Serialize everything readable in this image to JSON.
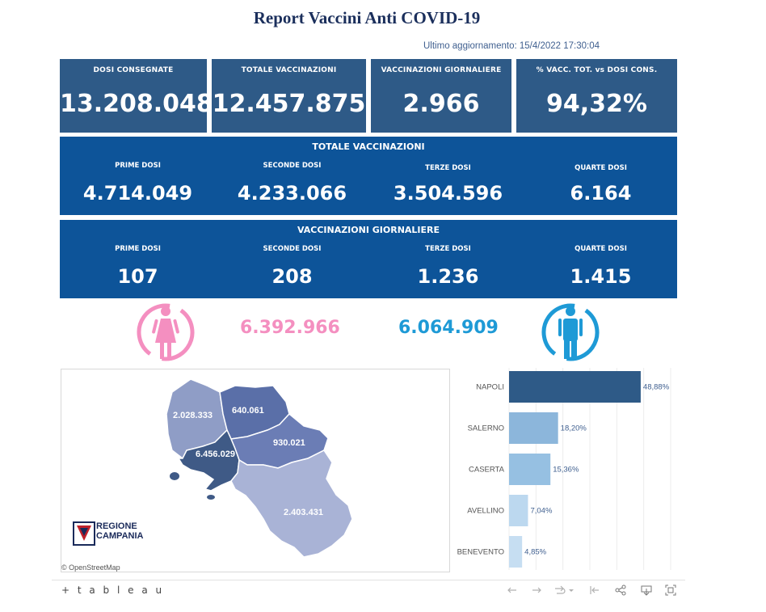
{
  "header": {
    "title": "Report Vaccini Anti COVID-19",
    "updated": "Ultimo aggiornamento: 15/4/2022 17:30:04"
  },
  "kpis": [
    {
      "label": "DOSI CONSEGNATE",
      "value": "13.208.048"
    },
    {
      "label": "TOTALE VACCINAZIONI",
      "value": "12.457.875"
    },
    {
      "label": "VACCINAZIONI GIORNALIERE",
      "value": "2.966"
    },
    {
      "label": "% VACC. TOT. vs DOSI CONS.",
      "value": "94,32%"
    }
  ],
  "totale": {
    "title": "TOTALE VACCINAZIONI",
    "items": [
      {
        "label": "PRIME DOSI",
        "value": "4.714.049"
      },
      {
        "label": "SECONDE DOSI",
        "value": "4.233.066"
      },
      {
        "label": "TERZE DOSI",
        "value": "3.504.596"
      },
      {
        "label": "QUARTE DOSI",
        "value": "6.164"
      }
    ]
  },
  "giornaliere": {
    "title": "VACCINAZIONI GIORNALIERE",
    "items": [
      {
        "label": "PRIME DOSI",
        "value": "107"
      },
      {
        "label": "SECONDE DOSI",
        "value": "208"
      },
      {
        "label": "TERZE DOSI",
        "value": "1.236"
      },
      {
        "label": "QUARTE DOSI",
        "value": "1.415"
      }
    ]
  },
  "gender": {
    "female_value": "6.392.966",
    "male_value": "6.064.909",
    "female_color": "#f48fc0",
    "male_color": "#1e9ad6",
    "female_icon": "female-person-icon",
    "male_icon": "male-person-icon"
  },
  "map": {
    "labels": {
      "caserta": "2.028.333",
      "benevento": "640.061",
      "avellino": "930.021",
      "napoli": "6.456.029",
      "salerno": "2.403.431"
    },
    "logo_text_1": "REGIONE",
    "logo_text_2": "CAMPANIA",
    "attribution": "© OpenStreetMap"
  },
  "chart_data": {
    "type": "bar",
    "orientation": "horizontal",
    "categories": [
      "NAPOLI",
      "SALERNO",
      "CASERTA",
      "AVELLINO",
      "BENEVENTO"
    ],
    "values": [
      48.88,
      18.2,
      15.36,
      7.04,
      4.85
    ],
    "value_labels": [
      "48,88%",
      "18,20%",
      "15,36%",
      "7,04%",
      "4,85%"
    ],
    "colors": [
      "#2e5a87",
      "#8cb6db",
      "#96c0e2",
      "#bcd8ef",
      "#c6def2"
    ],
    "xlim": [
      0,
      60
    ],
    "grid": true
  },
  "toolbar": {
    "brand": "+ t a b l e a u",
    "icons": [
      "undo-icon",
      "redo-icon",
      "revert-icon",
      "reset-icon",
      "share-icon",
      "download-icon",
      "fullscreen-icon"
    ]
  }
}
